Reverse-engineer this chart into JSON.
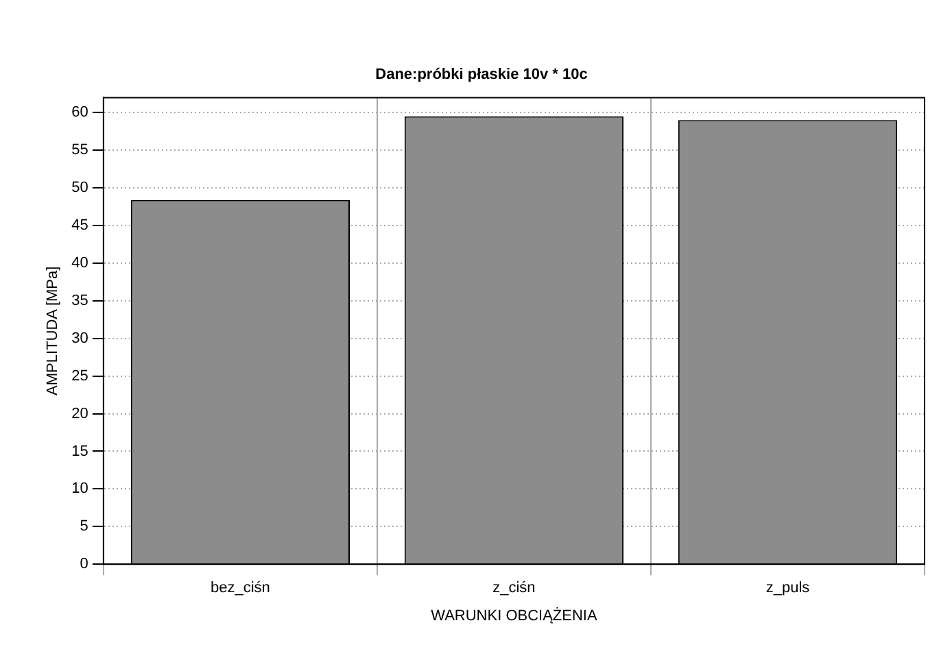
{
  "chart_data": {
    "type": "bar",
    "title": "Dane:próbki płaskie 10v * 10c",
    "xlabel": "WARUNKI OBCIĄŻENIA",
    "ylabel": "AMPLITUDA [MPa]",
    "categories": [
      "bez_ciśn",
      "z_ciśn",
      "z_puls"
    ],
    "values": [
      48.4,
      59.5,
      59.0
    ],
    "color": "#8c8c8c",
    "ylim": [
      0,
      62
    ],
    "yticks": [
      0,
      5,
      10,
      15,
      20,
      25,
      30,
      35,
      40,
      45,
      50,
      55,
      60
    ],
    "grid": true
  }
}
